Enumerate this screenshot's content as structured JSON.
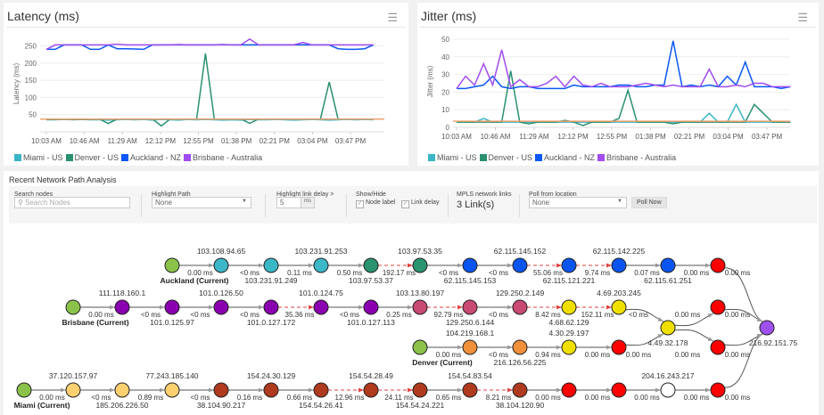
{
  "latency_panel": {
    "title": "Latency (ms)",
    "menu_icon": "hamburger-menu-icon"
  },
  "jitter_panel": {
    "title": "Jitter (ms)",
    "menu_icon": "hamburger-menu-icon"
  },
  "chart_data": [
    {
      "type": "line",
      "title": "Latency (ms)",
      "ylabel": "Latency (ms)",
      "xlabel": "",
      "ylim": [
        0,
        280
      ],
      "yticks": [
        50,
        100,
        150,
        200,
        250
      ],
      "xticks": [
        "10:03 AM",
        "10:46 AM",
        "11:29 AM",
        "12:12 PM",
        "12:55 PM",
        "01:38 PM",
        "02:21 PM",
        "03:04 PM",
        "03:47 PM"
      ],
      "grid": true,
      "legend": "bottom",
      "plot_line": {
        "value": 37,
        "color": "#f0a070"
      },
      "x": [
        "10:03 AM",
        "10:13 AM",
        "10:23 AM",
        "10:33 AM",
        "10:43 AM",
        "10:53 AM",
        "11:03 AM",
        "11:13 AM",
        "11:23 AM",
        "11:33 AM",
        "11:43 AM",
        "11:53 AM",
        "12:03 PM",
        "12:13 PM",
        "12:23 PM",
        "12:33 PM",
        "12:43 PM",
        "12:53 PM",
        "01:03 PM",
        "01:13 PM",
        "01:23 PM",
        "01:33 PM",
        "01:43 PM",
        "01:53 PM",
        "02:03 PM",
        "02:13 PM",
        "02:23 PM",
        "02:33 PM",
        "02:43 PM",
        "02:53 PM",
        "03:03 PM",
        "03:13 PM",
        "03:23 PM",
        "03:33 PM",
        "03:43 PM",
        "03:53 PM",
        "04:03 PM",
        "04:13 PM"
      ],
      "series": [
        {
          "name": "Miami - US",
          "color": "#3ab5c6",
          "values": [
            35,
            35,
            37,
            35,
            36,
            35,
            35,
            34,
            35,
            36,
            35,
            36,
            34,
            36,
            35,
            34,
            36,
            35,
            36,
            35,
            34,
            35,
            34,
            36,
            35,
            35,
            36,
            35,
            34,
            35,
            36,
            35,
            34,
            35,
            36,
            35,
            36,
            35
          ]
        },
        {
          "name": "Denver - US",
          "color": "#2a9070",
          "values": [
            36,
            36,
            36,
            36,
            36,
            36,
            37,
            24,
            37,
            37,
            37,
            37,
            37,
            17,
            37,
            37,
            37,
            37,
            228,
            37,
            37,
            37,
            37,
            25,
            37,
            37,
            37,
            37,
            37,
            37,
            37,
            37,
            145,
            37,
            37,
            37,
            37,
            37
          ]
        },
        {
          "name": "Auckland - NZ",
          "color": "#0b57f5",
          "values": [
            240,
            240,
            253,
            253,
            253,
            240,
            240,
            253,
            242,
            242,
            241,
            240,
            253,
            253,
            253,
            253,
            253,
            253,
            253,
            253,
            254,
            253,
            253,
            253,
            253,
            253,
            253,
            253,
            253,
            253,
            253,
            253,
            253,
            242,
            240,
            240,
            242,
            253
          ]
        },
        {
          "name": "Brisbane - Australia",
          "color": "#a04cf0",
          "values": [
            240,
            253,
            253,
            253,
            253,
            253,
            253,
            253,
            255,
            253,
            253,
            253,
            253,
            253,
            253,
            254,
            253,
            253,
            253,
            253,
            253,
            253,
            253,
            270,
            253,
            253,
            253,
            253,
            253,
            260,
            253,
            253,
            253,
            253,
            253,
            253,
            253,
            253
          ]
        }
      ]
    },
    {
      "type": "line",
      "title": "Jitter (ms)",
      "ylabel": "Jitter (ms)",
      "xlabel": "",
      "ylim": [
        0,
        52
      ],
      "yticks": [
        0,
        10,
        20,
        30,
        40,
        50
      ],
      "xticks": [
        "10:03 AM",
        "10:46 AM",
        "11:29 AM",
        "12:12 PM",
        "12:55 PM",
        "01:38 PM",
        "02:21 PM",
        "03:04 PM",
        "03:47 PM"
      ],
      "grid": true,
      "legend": "bottom",
      "plot_line": {
        "value": 3.5,
        "color": "#f0a070"
      },
      "x": [
        "10:03 AM",
        "10:13 AM",
        "10:23 AM",
        "10:33 AM",
        "10:43 AM",
        "10:53 AM",
        "11:03 AM",
        "11:13 AM",
        "11:23 AM",
        "11:33 AM",
        "11:43 AM",
        "11:53 AM",
        "12:03 PM",
        "12:13 PM",
        "12:23 PM",
        "12:33 PM",
        "12:43 PM",
        "12:53 PM",
        "01:03 PM",
        "01:13 PM",
        "01:23 PM",
        "01:33 PM",
        "01:43 PM",
        "01:53 PM",
        "02:03 PM",
        "02:13 PM",
        "02:23 PM",
        "02:33 PM",
        "02:43 PM",
        "02:53 PM",
        "03:03 PM",
        "03:13 PM",
        "03:23 PM",
        "03:33 PM",
        "03:43 PM",
        "03:53 PM",
        "04:03 PM",
        "04:13 PM"
      ],
      "series": [
        {
          "name": "Miami - US",
          "color": "#3ab5c6",
          "values": [
            3,
            3,
            3,
            5,
            3,
            3,
            3,
            3,
            3,
            3,
            3,
            3,
            3,
            3,
            3,
            3,
            3,
            3,
            3,
            3,
            3,
            3,
            3,
            3,
            3,
            3,
            3,
            3,
            8,
            3,
            3,
            13,
            3,
            3,
            3,
            3,
            3,
            3
          ]
        },
        {
          "name": "Denver - US",
          "color": "#2a9070",
          "values": [
            3,
            3,
            3,
            3,
            3,
            3,
            32,
            3,
            2,
            3,
            3,
            3,
            4,
            3,
            1,
            3,
            3,
            3,
            5,
            21,
            3,
            3,
            3,
            3,
            2,
            3,
            3,
            3,
            3,
            3,
            3,
            3,
            3,
            13,
            8,
            3,
            3,
            3
          ]
        },
        {
          "name": "Auckland - NZ",
          "color": "#0b57f5",
          "values": [
            22,
            22,
            23,
            24,
            29,
            23,
            22,
            23,
            23,
            22,
            22,
            22,
            22,
            24,
            23,
            23,
            23,
            23,
            24,
            24,
            23,
            23,
            24,
            24,
            49,
            23,
            24,
            23,
            24,
            23,
            29,
            24,
            37,
            23,
            23,
            23,
            22,
            23
          ]
        },
        {
          "name": "Brisbane - Australia",
          "color": "#a04cf0",
          "values": [
            22,
            29,
            24,
            36,
            24,
            44,
            23,
            27,
            23,
            23,
            25,
            29,
            23,
            29,
            24,
            23,
            25,
            23,
            23,
            23,
            24,
            25,
            24,
            23,
            24,
            23,
            23,
            23,
            33,
            23,
            23,
            24,
            23,
            25,
            25,
            23,
            23,
            23
          ]
        }
      ]
    }
  ],
  "network": {
    "title": "Recent Network Path Analysis",
    "toolbar": {
      "search_label": "Search nodes",
      "search_placeholder": "Search Nodes",
      "highlight_path_label": "Highlight Path",
      "highlight_path_value": "None",
      "link_delay_label": "Highlight link delay >",
      "link_delay_value": "5",
      "link_delay_unit": "ms",
      "showhide_label": "Show/Hide",
      "node_label_checkbox": "Node label",
      "node_label_checked": true,
      "link_delay_checkbox": "Link delay",
      "link_delay_checked": true,
      "mpls_label": "MPLS network links",
      "mpls_value": "3 Link(s)",
      "poll_label": "Poll from location",
      "poll_value": "None",
      "poll_button": "Poll Now"
    },
    "colors": {
      "source": "#8bc34a",
      "teal": "#3bb8c8",
      "darkgreen": "#2a9470",
      "blue": "#0a55f0",
      "red": "#ff0000",
      "violet": "#8a00b0",
      "pink": "#c94a72",
      "yellow": "#f0e000",
      "orange": "#f0903a",
      "peach": "#ffd070",
      "brown": "#b03a1e",
      "dest": "#a050f0",
      "white": "#ffffff",
      "highlight_link": "#e04040"
    },
    "nodes": [
      {
        "id": "A0",
        "color": "source",
        "name": "Auckland (Current)"
      },
      {
        "id": "A1",
        "color": "teal",
        "ip": "103.108.94.65"
      },
      {
        "id": "A2",
        "color": "teal",
        "ip": "103.231.91.249"
      },
      {
        "id": "A3",
        "color": "teal",
        "ip": "103.231.91.253"
      },
      {
        "id": "A4",
        "color": "darkgreen",
        "ip": "103.97.53.37"
      },
      {
        "id": "A5",
        "color": "darkgreen",
        "ip": "103.97.53.35"
      },
      {
        "id": "A6",
        "color": "blue",
        "ip": "62.115.145.153"
      },
      {
        "id": "A7",
        "color": "blue",
        "ip": "62.115.145.152"
      },
      {
        "id": "A8",
        "color": "blue",
        "ip": "62.115.121.221"
      },
      {
        "id": "A9",
        "color": "blue",
        "ip": "62.115.142.225"
      },
      {
        "id": "A10",
        "color": "blue",
        "ip": "62.115.61.251"
      },
      {
        "id": "A11",
        "color": "red"
      },
      {
        "id": "B0",
        "color": "source",
        "name": "Brisbane (Current)"
      },
      {
        "id": "B1",
        "color": "violet",
        "ip": "111.118.160.1"
      },
      {
        "id": "B2",
        "color": "violet",
        "ip": "101.0.125.97"
      },
      {
        "id": "B3",
        "color": "violet",
        "ip": "101.0.126.50"
      },
      {
        "id": "B4",
        "color": "violet",
        "ip": "101.0.127.172"
      },
      {
        "id": "B5",
        "color": "violet",
        "ip": "101.0.124.75"
      },
      {
        "id": "B6",
        "color": "violet",
        "ip": "101.0.127.113"
      },
      {
        "id": "B7",
        "color": "pink",
        "ip": "103.13.80.197"
      },
      {
        "id": "B8",
        "color": "pink",
        "ip": "129.250.6.144"
      },
      {
        "id": "B9",
        "color": "pink",
        "ip": "129.250.2.149"
      },
      {
        "id": "B10",
        "color": "yellow",
        "ip": "4.68.62.129"
      },
      {
        "id": "B11",
        "color": "yellow",
        "ip": "4.69.203.245"
      },
      {
        "id": "H",
        "color": "yellow",
        "ip": "4.49.32.178"
      },
      {
        "id": "B12",
        "color": "red"
      },
      {
        "id": "D0",
        "color": "source",
        "name": "Denver (Current)"
      },
      {
        "id": "D1",
        "color": "orange",
        "ip": "104.219.168.1"
      },
      {
        "id": "D2",
        "color": "orange",
        "ip": "216.126.56.225"
      },
      {
        "id": "D3",
        "color": "yellow",
        "ip": "4.30.29.197"
      },
      {
        "id": "D4",
        "color": "red"
      },
      {
        "id": "D5",
        "color": "red"
      },
      {
        "id": "M0",
        "color": "source",
        "name": "Miami (Current)"
      },
      {
        "id": "M1",
        "color": "peach",
        "ip": "37.120.157.97"
      },
      {
        "id": "M2",
        "color": "peach",
        "ip": "185.206.226.50"
      },
      {
        "id": "M3",
        "color": "peach",
        "ip": "77.243.185.140"
      },
      {
        "id": "M4",
        "color": "brown",
        "ip": "38.104.90.217"
      },
      {
        "id": "M5",
        "color": "brown",
        "ip": "154.24.30.129"
      },
      {
        "id": "M6",
        "color": "brown",
        "ip": "154.54.26.41"
      },
      {
        "id": "M7",
        "color": "brown",
        "ip": "154.54.28.49"
      },
      {
        "id": "M8",
        "color": "brown",
        "ip": "154.54.24.221"
      },
      {
        "id": "M9",
        "color": "brown",
        "ip": "154.54.83.54"
      },
      {
        "id": "M10",
        "color": "brown",
        "ip": "38.104.120.90"
      },
      {
        "id": "M11",
        "color": "red"
      },
      {
        "id": "M12",
        "color": "red"
      },
      {
        "id": "M13",
        "color": "white",
        "ip": "204.16.243.217"
      },
      {
        "id": "M14",
        "color": "red"
      },
      {
        "id": "DEST",
        "color": "dest",
        "ip": "216.92.151.75"
      }
    ],
    "edges": [
      {
        "from": "A0",
        "to": "A1",
        "delay": "0.00 ms"
      },
      {
        "from": "A1",
        "to": "A2",
        "delay": "<0 ms"
      },
      {
        "from": "A2",
        "to": "A3",
        "delay": "0.11 ms"
      },
      {
        "from": "A3",
        "to": "A4",
        "delay": "0.50 ms"
      },
      {
        "from": "A4",
        "to": "A5",
        "delay": "192.17 ms",
        "highlighted": true
      },
      {
        "from": "A5",
        "to": "A6",
        "delay": "<0 ms"
      },
      {
        "from": "A6",
        "to": "A7",
        "delay": "<0 ms"
      },
      {
        "from": "A7",
        "to": "A8",
        "delay": "55.06 ms",
        "highlighted": true
      },
      {
        "from": "A8",
        "to": "A9",
        "delay": "9.74 ms",
        "highlighted": true
      },
      {
        "from": "A9",
        "to": "A10",
        "delay": "0.07 ms"
      },
      {
        "from": "A10",
        "to": "A11",
        "delay": "0.00 ms"
      },
      {
        "from": "A11",
        "to": "DEST",
        "delay": "0.00 ms"
      },
      {
        "from": "B0",
        "to": "B1",
        "delay": "0.00 ms"
      },
      {
        "from": "B1",
        "to": "B2",
        "delay": "<0 ms"
      },
      {
        "from": "B2",
        "to": "B3",
        "delay": "<0 ms"
      },
      {
        "from": "B3",
        "to": "B4",
        "delay": "<0 ms"
      },
      {
        "from": "B4",
        "to": "B5",
        "delay": "35.36 ms",
        "highlighted": true
      },
      {
        "from": "B5",
        "to": "B6",
        "delay": "<0 ms"
      },
      {
        "from": "B6",
        "to": "B7",
        "delay": "0.25 ms"
      },
      {
        "from": "B7",
        "to": "B8",
        "delay": "92.79 ms",
        "highlighted": true
      },
      {
        "from": "B8",
        "to": "B9",
        "delay": "<0 ms"
      },
      {
        "from": "B9",
        "to": "B10",
        "delay": "8.42 ms",
        "highlighted": true
      },
      {
        "from": "B10",
        "to": "B11",
        "delay": "152.11 ms",
        "highlighted": true
      },
      {
        "from": "B11",
        "to": "H",
        "delay": "<0 ms"
      },
      {
        "from": "H",
        "to": "B12",
        "delay": "0.00 ms"
      },
      {
        "from": "B12",
        "to": "DEST",
        "delay": "0.00 ms"
      },
      {
        "from": "D0",
        "to": "D1",
        "delay": "0.00 ms"
      },
      {
        "from": "D1",
        "to": "D2",
        "delay": "<0 ms"
      },
      {
        "from": "D2",
        "to": "D3",
        "delay": "0.94 ms"
      },
      {
        "from": "D3",
        "to": "D4",
        "delay": "0.00 ms"
      },
      {
        "from": "D4",
        "to": "H",
        "delay": "0.00 ms"
      },
      {
        "from": "H",
        "to": "D5",
        "delay": "0.00 ms"
      },
      {
        "from": "D5",
        "to": "DEST",
        "delay": "0.00 ms"
      },
      {
        "from": "M0",
        "to": "M1",
        "delay": "0.00 ms"
      },
      {
        "from": "M1",
        "to": "M2",
        "delay": "<0 ms"
      },
      {
        "from": "M2",
        "to": "M3",
        "delay": "0.89 ms"
      },
      {
        "from": "M3",
        "to": "M4",
        "delay": "<0 ms"
      },
      {
        "from": "M4",
        "to": "M5",
        "delay": "0.16 ms"
      },
      {
        "from": "M5",
        "to": "M6",
        "delay": "0.66 ms"
      },
      {
        "from": "M6",
        "to": "M7",
        "delay": "12.96 ms",
        "highlighted": true
      },
      {
        "from": "M7",
        "to": "M8",
        "delay": "24.11 ms",
        "highlighted": true
      },
      {
        "from": "M8",
        "to": "M9",
        "delay": "0.65 ms"
      },
      {
        "from": "M9",
        "to": "M10",
        "delay": "8.21 ms",
        "highlighted": true
      },
      {
        "from": "M10",
        "to": "M11",
        "delay": "0.00 ms"
      },
      {
        "from": "M11",
        "to": "M12",
        "delay": "0.00 ms"
      },
      {
        "from": "M12",
        "to": "M13",
        "delay": "0.00 ms"
      },
      {
        "from": "M13",
        "to": "M14",
        "delay": "0.00 ms"
      },
      {
        "from": "M14",
        "to": "DEST",
        "delay": "0.00 ms"
      }
    ]
  }
}
